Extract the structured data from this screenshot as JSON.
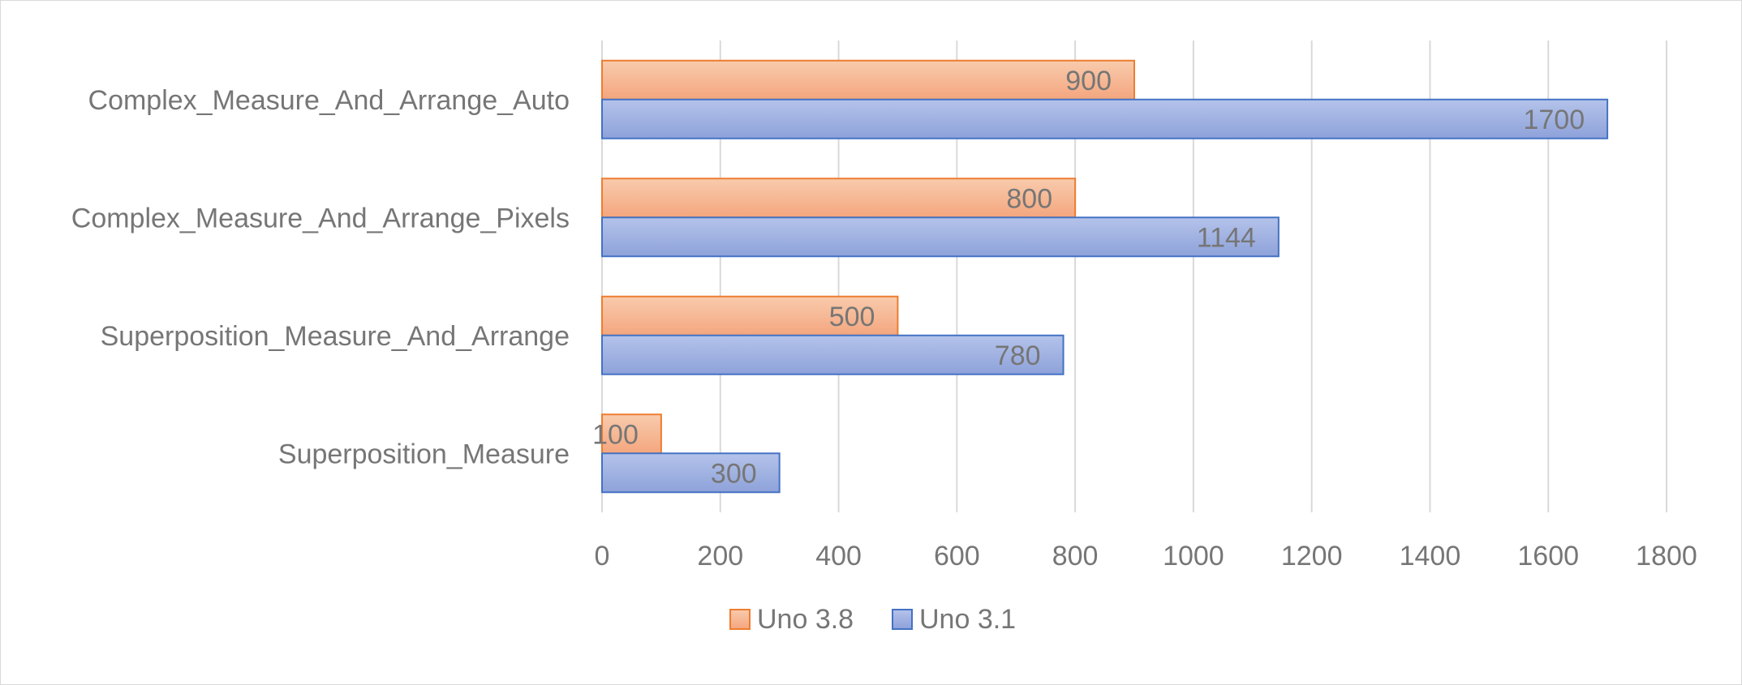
{
  "chart_data": {
    "type": "bar",
    "orientation": "horizontal",
    "categories": [
      "Complex_Measure_And_Arrange_Auto",
      "Complex_Measure_And_Arrange_Pixels",
      "Superposition_Measure_And_Arrange",
      "Superposition_Measure"
    ],
    "series": [
      {
        "name": "Uno 3.8",
        "values": [
          900,
          800,
          500,
          100
        ],
        "color": "#ED7D31",
        "fill": "#F4B183"
      },
      {
        "name": "Uno 3.1",
        "values": [
          1700,
          1144,
          780,
          300
        ],
        "color": "#4472C4",
        "fill": "#9DAFE0"
      }
    ],
    "xlim": [
      0,
      1800
    ],
    "xticks": [
      0,
      200,
      400,
      600,
      800,
      1000,
      1200,
      1400,
      1600,
      1800
    ],
    "grid": true,
    "data_labels": true,
    "legend_position": "bottom",
    "title": "",
    "xlabel": "",
    "ylabel": ""
  }
}
